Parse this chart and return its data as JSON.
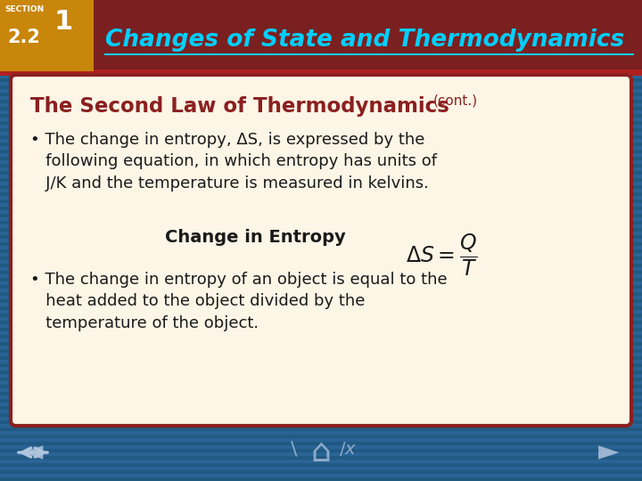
{
  "bg_color": "#2a6496",
  "stripe_color": "#1a5276",
  "header_bg": "#7a2020",
  "header_accent": "#b02020",
  "header_title": "Changes of State and Thermodynamics",
  "header_title_color": "#00cfff",
  "section_label": "SECTION",
  "section_number": "1",
  "section_sub": "2.2",
  "section_bg": "#c8860a",
  "content_bg": "#fdf5e6",
  "content_border": "#8B2020",
  "subtitle": "The Second Law of Thermodynamics",
  "subtitle_cont": "(cont.)",
  "subtitle_color": "#8B2020",
  "formula_label": "Change in Entropy",
  "text_color": "#1a1a1a",
  "arrow_color": "#b0c4de"
}
